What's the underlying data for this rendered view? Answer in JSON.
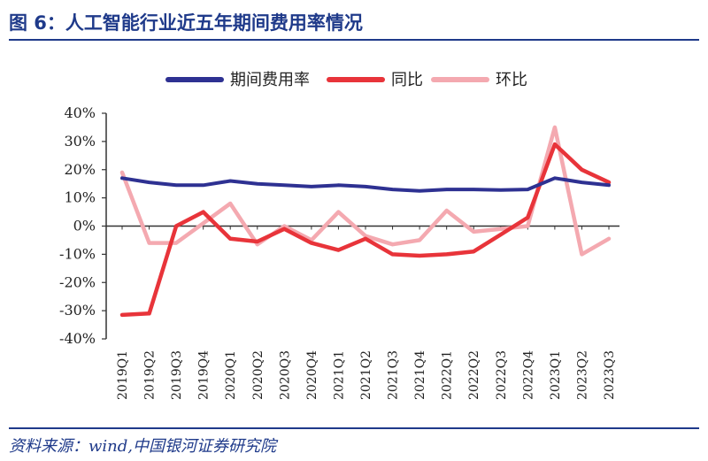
{
  "header": {
    "title": "图 6：人工智能行业近五年期间费用率情况"
  },
  "footer": {
    "source": "资料来源：wind,中国银河证券研究院"
  },
  "colors": {
    "accent": "#1f3a8a"
  },
  "chart_data": {
    "type": "line",
    "title": "图 6：人工智能行业近五年期间费用率情况",
    "xlabel": "",
    "ylabel": "",
    "ylim": [
      -40,
      40
    ],
    "yticks": [
      40,
      30,
      20,
      10,
      0,
      -10,
      -20,
      -30,
      -40
    ],
    "ytick_labels": [
      "40%",
      "30%",
      "20%",
      "10%",
      "0%",
      "-10%",
      "-20%",
      "-30%",
      "-40%"
    ],
    "grid": false,
    "legend_position": "top",
    "categories": [
      "2019Q1",
      "2019Q2",
      "2019Q3",
      "2019Q4",
      "2020Q1",
      "2020Q2",
      "2020Q3",
      "2020Q4",
      "2021Q1",
      "2021Q2",
      "2021Q3",
      "2021Q4",
      "2022Q1",
      "2022Q2",
      "2022Q3",
      "2022Q4",
      "2023Q1",
      "2023Q2",
      "2023Q3"
    ],
    "series": [
      {
        "name": "期间费用率",
        "color": "#2e3192",
        "values": [
          17,
          15.5,
          14.5,
          14.5,
          16,
          15,
          14.5,
          14,
          14.5,
          14,
          13,
          12.5,
          13,
          13,
          12.8,
          13,
          17,
          15.5,
          14.5
        ]
      },
      {
        "name": "同比",
        "color": "#e8343a",
        "values": [
          -31.5,
          -31,
          0,
          5,
          -4.5,
          -5.5,
          -1,
          -6,
          -8.5,
          -4.5,
          -10,
          -10.5,
          -10,
          -9,
          -3,
          3,
          29,
          20,
          15.5
        ]
      },
      {
        "name": "环比",
        "color": "#f4a9b0",
        "values": [
          19,
          -6,
          -6,
          1,
          8,
          -6.5,
          0,
          -5,
          5,
          -3.5,
          -6.5,
          -5,
          5.5,
          -2,
          -1,
          0,
          35,
          -10,
          -4.5
        ]
      }
    ]
  }
}
